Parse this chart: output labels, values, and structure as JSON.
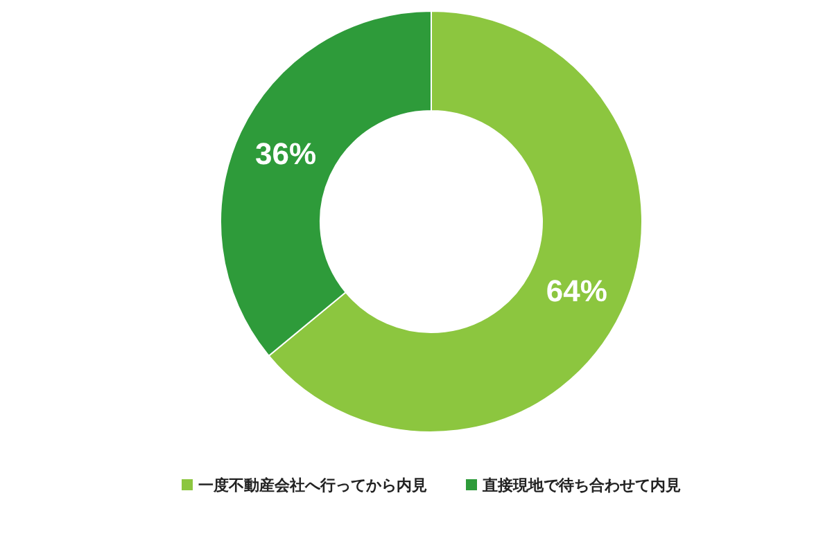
{
  "chart_data": {
    "type": "donut",
    "categories": [
      "一度不動産会社へ行ってから内見",
      "直接現地で待ち合わせて内見"
    ],
    "values": [
      64,
      36
    ],
    "colors": [
      "#8cc63f",
      "#2e9b3a"
    ],
    "value_labels": [
      "64%",
      "36%"
    ],
    "legend": "bottom"
  }
}
